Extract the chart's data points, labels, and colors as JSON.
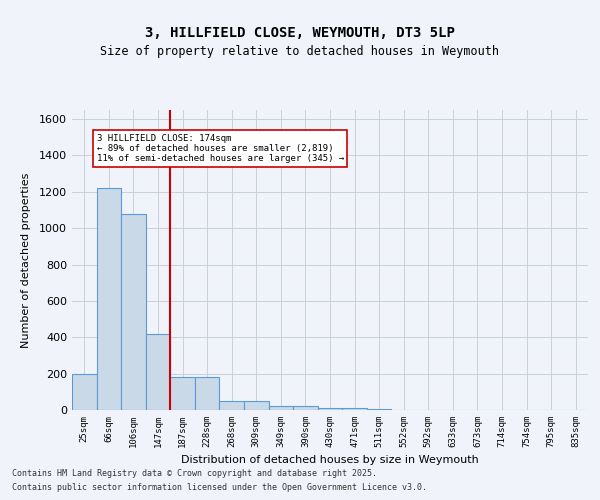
{
  "title1": "3, HILLFIELD CLOSE, WEYMOUTH, DT3 5LP",
  "title2": "Size of property relative to detached houses in Weymouth",
  "xlabel": "Distribution of detached houses by size in Weymouth",
  "ylabel": "Number of detached properties",
  "categories": [
    "25sqm",
    "66sqm",
    "106sqm",
    "147sqm",
    "187sqm",
    "228sqm",
    "268sqm",
    "309sqm",
    "349sqm",
    "390sqm",
    "430sqm",
    "471sqm",
    "511sqm",
    "552sqm",
    "592sqm",
    "633sqm",
    "673sqm",
    "714sqm",
    "754sqm",
    "795sqm",
    "835sqm"
  ],
  "values": [
    200,
    1220,
    1080,
    420,
    180,
    180,
    50,
    50,
    20,
    20,
    10,
    10,
    5,
    0,
    0,
    0,
    0,
    0,
    0,
    0,
    0
  ],
  "bar_color": "#c9d9e8",
  "bar_edge_color": "#5b9bd5",
  "vline_x": 4,
  "vline_color": "#cc0000",
  "vline_label_title": "3 HILLFIELD CLOSE: 174sqm",
  "vline_label_line1": "← 89% of detached houses are smaller (2,819)",
  "vline_label_line2": "11% of semi-detached houses are larger (345) →",
  "annotation_box_color": "#cc0000",
  "ylim": [
    0,
    1650
  ],
  "yticks": [
    0,
    200,
    400,
    600,
    800,
    1000,
    1200,
    1400,
    1600
  ],
  "footer1": "Contains HM Land Registry data © Crown copyright and database right 2025.",
  "footer2": "Contains public sector information licensed under the Open Government Licence v3.0.",
  "bg_color": "#f0f4fa",
  "plot_bg_color": "#f0f4fa"
}
